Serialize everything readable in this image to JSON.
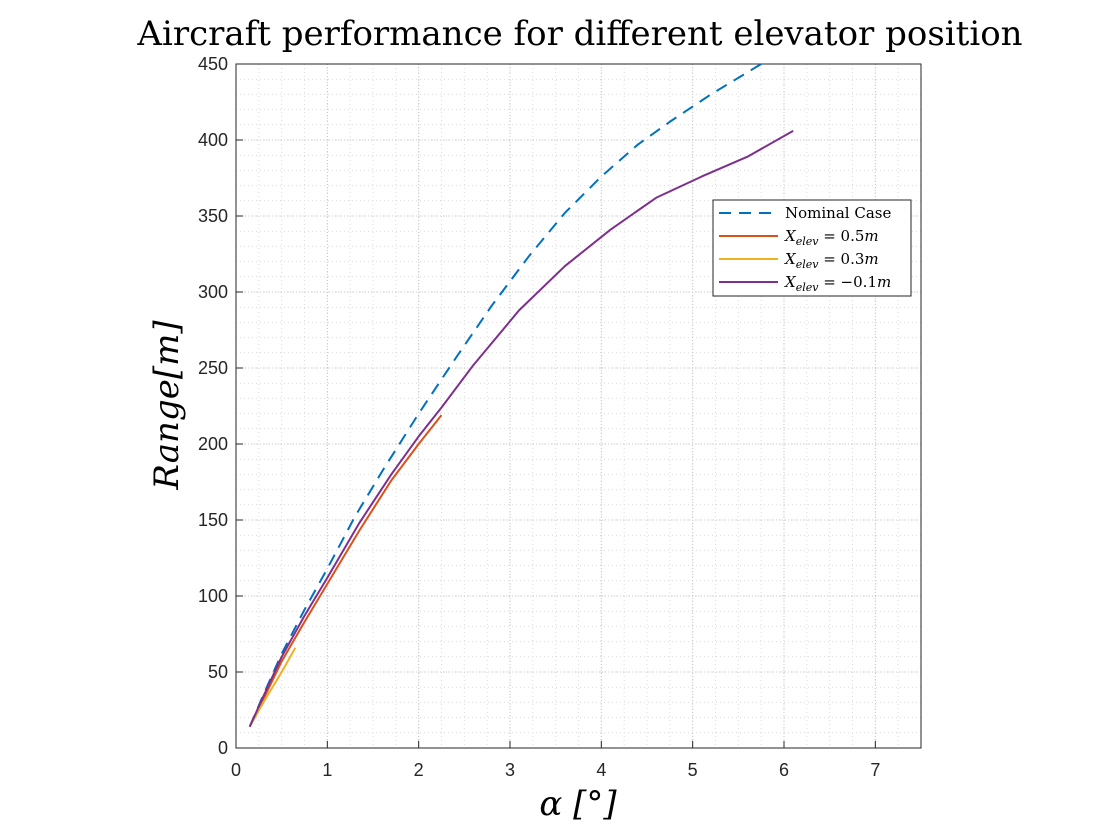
{
  "chart_data": {
    "type": "line",
    "title": "Aircraft performance for different elevator position",
    "xlabel": "α [°]",
    "ylabel": "Range[m]",
    "xlim": [
      0,
      7.5
    ],
    "ylim": [
      0,
      450
    ],
    "xticks": [
      0,
      1,
      2,
      3,
      4,
      5,
      6,
      7
    ],
    "yticks": [
      0,
      50,
      100,
      150,
      200,
      250,
      300,
      350,
      400,
      450
    ],
    "grid": true,
    "minor_grid": true,
    "legend_position": "top-right",
    "series": [
      {
        "name": "Nominal Case",
        "color": "#0072BD",
        "dash": true,
        "x": [
          0.15,
          0.3,
          0.5,
          0.75,
          1.0,
          1.3,
          1.6,
          2.0,
          2.4,
          2.8,
          3.2,
          3.6,
          4.0,
          4.4,
          4.75,
          5.2,
          5.75
        ],
        "y": [
          14,
          35,
          62,
          91,
          118,
          152,
          182,
          220,
          256,
          291,
          323,
          352,
          376,
          397,
          412,
          430,
          450
        ]
      },
      {
        "name": "X_elev = 0.5m",
        "name_base": "X",
        "name_sub": "elev",
        "name_eq": " = 0.5",
        "name_unit": "m",
        "color": "#D95319",
        "dash": false,
        "x": [
          0.15,
          0.3,
          0.5,
          0.75,
          1.0,
          1.35,
          1.7,
          2.0,
          2.25
        ],
        "y": [
          14,
          32,
          57,
          83,
          108,
          143,
          176,
          200,
          219
        ]
      },
      {
        "name": "X_elev = 0.3m",
        "name_base": "X",
        "name_sub": "elev",
        "name_eq": " = 0.3",
        "name_unit": "m",
        "color": "#EDB120",
        "dash": false,
        "x": [
          0.15,
          0.3,
          0.5,
          0.65
        ],
        "y": [
          14,
          30,
          50,
          66
        ]
      },
      {
        "name": "X_elev = −0.1m",
        "name_base": "X",
        "name_sub": "elev",
        "name_eq": " = −0.1",
        "name_unit": "m",
        "color": "#7E2F8E",
        "dash": false,
        "x": [
          0.15,
          0.3,
          0.5,
          0.75,
          1.0,
          1.35,
          1.7,
          2.0,
          2.25,
          2.6,
          3.1,
          3.6,
          4.1,
          4.6,
          5.1,
          5.6,
          6.1
        ],
        "y": [
          14,
          34,
          60,
          87,
          112,
          148,
          180,
          205,
          224,
          252,
          288,
          317,
          341,
          362,
          376,
          389,
          406
        ]
      }
    ]
  }
}
